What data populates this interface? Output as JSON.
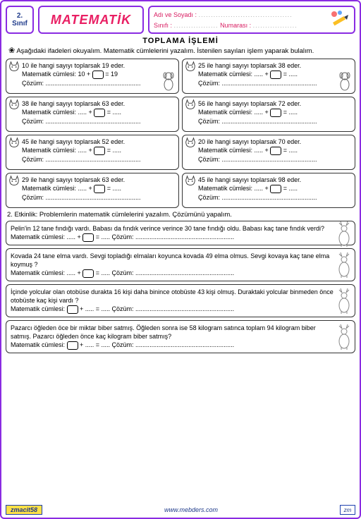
{
  "header": {
    "grade_num": "2.",
    "grade_word": "Sınıf",
    "subject": "MATEMATİK",
    "name_label": "Adı ve Soyadı :",
    "class_label": "Sınıfı :",
    "number_label": "Numarası :",
    "dots": "....................."
  },
  "title": "TOPLAMA  İŞLEMİ",
  "instruction": "Aşağıdaki ifadeleri okuyalım. Matematik cümlelerini yazalım. İstenilen sayıları işlem yaparak bulalım.",
  "cells": [
    {
      "line1": "10  ile hangi  sayıyı toplarsak 19 eder.",
      "eq_pre": "Matematik cümlesi:  10 +",
      "eq_post": "= 19",
      "coz": "Çözüm: ......................................................"
    },
    {
      "line1": "25  ile hangi  sayıyı toplarsak 38 eder.",
      "eq_pre": "Matematik cümlesi:  ..... +",
      "eq_post": "= .....",
      "coz": "Çözüm: ......................................................"
    },
    {
      "line1": "38  ile hangi  sayıyı toplarsak 63 eder.",
      "eq_pre": "Matematik cümlesi:  ..... +",
      "eq_post": "= .....",
      "coz": "Çözüm: ......................................................"
    },
    {
      "line1": "56 ile hangi  sayıyı toplarsak 72 eder.",
      "eq_pre": "Matematik cümlesi:  ..... +",
      "eq_post": "= .....",
      "coz": "Çözüm: ......................................................"
    },
    {
      "line1": "45  ile hangi  sayıyı toplarsak 52 eder.",
      "eq_pre": "Matematik cümlesi:  ..... +",
      "eq_post": "= .....",
      "coz": "Çözüm: ......................................................"
    },
    {
      "line1": "20 ile hangi  sayıyı toplarsak 70 eder.",
      "eq_pre": "Matematik cümlesi:  ..... +",
      "eq_post": "= .....",
      "coz": "Çözüm: ......................................................"
    },
    {
      "line1": "29  ile hangi  sayıyı toplarsak 63 eder.",
      "eq_pre": "Matematik cümlesi:  ..... +",
      "eq_post": "= .....",
      "coz": "Çözüm: ......................................................"
    },
    {
      "line1": "45  ile hangi  sayıyı toplarsak 98 eder.",
      "eq_pre": "Matematik cümlesi:  ..... +",
      "eq_post": "= .....",
      "coz": "Çözüm: ......................................................"
    }
  ],
  "activity2": "2. Etkinlik: Problemlerin matematik cümlelerini yazalım. Çözümünü yapalım.",
  "problems": [
    {
      "t1": "Pelin'in 12 tane fındığı vardı. Babası da fındık verince verince 30 tane fındığı oldu. Babası kaç tane fındık verdi?",
      "eq": "Matematik cümlesi:  ..... +",
      "post": "= .....   Çözüm: ........................................................"
    },
    {
      "t1": "Kovada 24  tane elma vardı. Sevgi topladığı elmaları koyunca kovada 49 elma olmus. Sevgi kovaya kaç  tane  elma koymuş ?",
      "eq": "Matematik cümlesi:  ..... +",
      "post": "= .....   Çözüm: ........................................................"
    },
    {
      "t1": "İçinde yolcular olan otobüse durakta 16 kişi daha binince  otobüste 43 kişi olmuş. Duraktaki yolcular binmeden  önce otobüste kaç kişi vardı ?",
      "eq": "Matematik cümlesi: ",
      "post": "+ ..... = .....   Çözüm: ........................................................"
    },
    {
      "t1": "Pazarcı öğleden öce  bir miktar biber satmış.  Öğleden sonra ise 58 kilogram satınca toplam 94 kilogram biber satmış. Pazarcı öğleden  önce kaç kilogram biber satmış?",
      "eq": "Matematik cümlesi: ",
      "post": "+ ..... = .....   Çözüm: ........................................................"
    }
  ],
  "footer": {
    "left": "zmacit58",
    "mid": "www.mebders.com",
    "right": "zm"
  },
  "colors": {
    "border": "#8a2be2",
    "title": "#e91e63",
    "accent": "#d81b60"
  }
}
